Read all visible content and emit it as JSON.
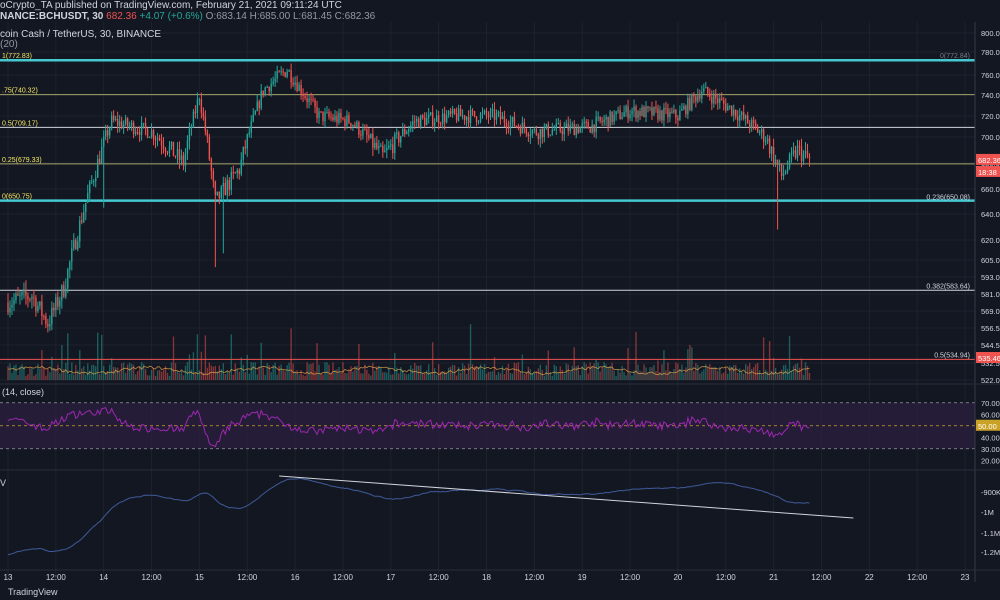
{
  "header": {
    "line1": "oCrypto_TA published on TradingView.com, February 21, 2021 09:11:24 UTC",
    "line2_symbol": "NANCE:BCHUSDT, 30",
    "line2_last": "682.36",
    "line2_change": "+4.07 (+0.6%)",
    "line2_ohlc": "O:683.14 H:685.00 L:681.45 C:682.36",
    "title": "coin Cash / TetherUS, 30, BINANCE",
    "sub": "(20)"
  },
  "rsi_label": "(14, close)",
  "obv_label": "V",
  "watermark": "TradingView",
  "price_badge": {
    "value": "682.36",
    "countdown": "18:38",
    "color": "#ef5350"
  },
  "level_badge": {
    "value": "535.46",
    "color": "#ef5350"
  },
  "colors": {
    "up": "#26a69a",
    "down": "#ef5350",
    "fib_cyan": "#45c8cf",
    "fib_olive": "#a4a36a",
    "fib_white": "#d1d4dc",
    "rsi": "#9c27b0",
    "obv": "#3f5a99"
  },
  "chart_data": [
    {
      "type": "candlestick",
      "title": "coin Cash / TetherUS, 30, BINANCE",
      "price_axis_labels": [
        "800.00",
        "780.00",
        "760.00",
        "740.00",
        "720.00",
        "700.00",
        "680.00",
        "660.00",
        "640.00",
        "620.00",
        "605.00",
        "593.00",
        "581.00",
        "569.00",
        "556.50",
        "544.50",
        "532.50",
        "522.00"
      ],
      "time_axis_labels": [
        "13",
        "12:00",
        "14",
        "12:00",
        "15",
        "12:00",
        "16",
        "12:00",
        "17",
        "12:00",
        "18",
        "12:00",
        "19",
        "12:00",
        "20",
        "12:00",
        "21",
        "12:00",
        "22",
        "12:00",
        "23"
      ],
      "fib_left_labels": [
        "1(772.83)",
        ".75(740.32)",
        "0.5(709.17)",
        "0.25(679.33)",
        "0(650.75)"
      ],
      "fib_left_values": [
        772.83,
        740.32,
        709.17,
        679.33,
        650.75
      ],
      "fib_right_labels": [
        "0(772.84)",
        "0.236(650.08)",
        "0.382(583.64)",
        "0.5(534.94)"
      ],
      "fib_right_values": [
        772.84,
        650.08,
        583.64,
        534.94
      ],
      "series_keypoints": [
        {
          "x": "13 00:00",
          "y": 575
        },
        {
          "x": "13 06:00",
          "y": 580
        },
        {
          "x": "13 10:00",
          "y": 560
        },
        {
          "x": "13 14:00",
          "y": 585
        },
        {
          "x": "13 20:00",
          "y": 655
        },
        {
          "x": "14 02:00",
          "y": 715
        },
        {
          "x": "14 12:00",
          "y": 705
        },
        {
          "x": "14 20:00",
          "y": 680
        },
        {
          "x": "15 00:00",
          "y": 740
        },
        {
          "x": "15 04:00",
          "y": 650
        },
        {
          "x": "15 10:00",
          "y": 675
        },
        {
          "x": "15 16:00",
          "y": 745
        },
        {
          "x": "15 22:00",
          "y": 765
        },
        {
          "x": "16 06:00",
          "y": 720
        },
        {
          "x": "16 14:00",
          "y": 715
        },
        {
          "x": "16 22:00",
          "y": 685
        },
        {
          "x": "17 06:00",
          "y": 715
        },
        {
          "x": "17 16:00",
          "y": 720
        },
        {
          "x": "18 02:00",
          "y": 720
        },
        {
          "x": "18 12:00",
          "y": 705
        },
        {
          "x": "19 02:00",
          "y": 710
        },
        {
          "x": "19 12:00",
          "y": 725
        },
        {
          "x": "20 00:00",
          "y": 720
        },
        {
          "x": "20 06:00",
          "y": 745
        },
        {
          "x": "20 14:00",
          "y": 725
        },
        {
          "x": "20 22:00",
          "y": 700
        },
        {
          "x": "21 02:00",
          "y": 670
        },
        {
          "x": "21 06:00",
          "y": 690
        },
        {
          "x": "21 09:00",
          "y": 682.36
        }
      ]
    },
    {
      "type": "line",
      "title": "RSI (14, close)",
      "axis_labels": [
        "70.00",
        "60.00",
        "50.00",
        "40.00",
        "30.00",
        "20.00"
      ],
      "bands": [
        70,
        50,
        30
      ],
      "current": "50.00"
    },
    {
      "type": "line",
      "title": "OBV",
      "axis_labels": [
        "-900K",
        "-1M",
        "-1.1M",
        "-1.2M"
      ]
    }
  ]
}
